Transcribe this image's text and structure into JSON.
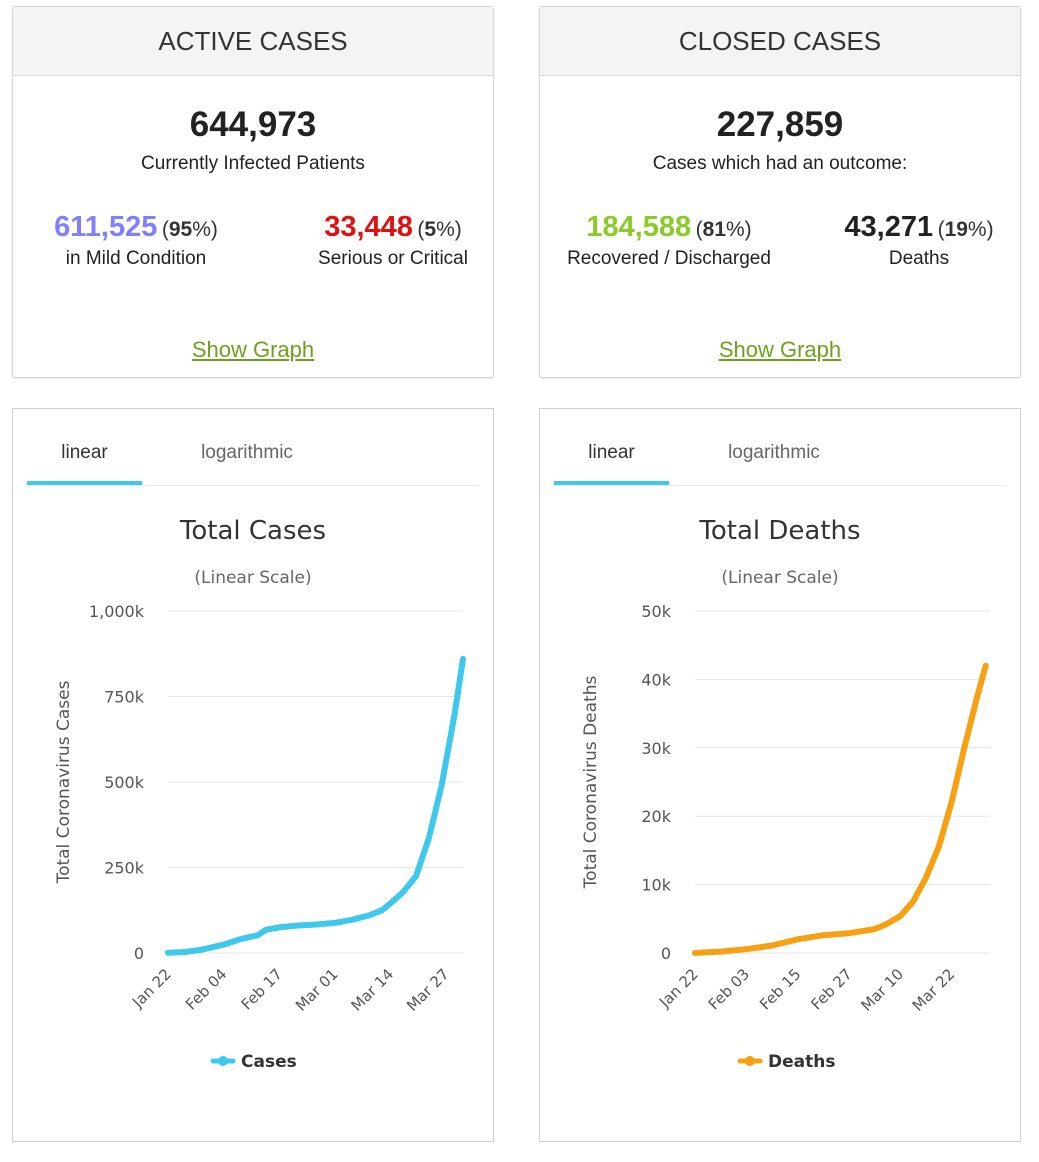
{
  "active_cases": {
    "header": "ACTIVE CASES",
    "total": "644,973",
    "total_label": "Currently Infected Patients",
    "mild": {
      "value": "611,525",
      "pct_open": "(",
      "pct": "95",
      "pct_close": "%)",
      "label": "in Mild Condition",
      "color": "#8080ff"
    },
    "serious": {
      "value": "33,448",
      "pct_open": "(",
      "pct": "5",
      "pct_close": "%)",
      "label": "Serious or Critical",
      "color": "#e01010"
    },
    "show_graph": "Show Graph"
  },
  "closed_cases": {
    "header": "CLOSED CASES",
    "total": "227,859",
    "total_label": "Cases which had an outcome:",
    "recovered": {
      "value": "184,588",
      "pct_open": "(",
      "pct": "81",
      "pct_close": "%)",
      "label": "Recovered / Discharged",
      "color": "#8acb28"
    },
    "deaths": {
      "value": "43,271",
      "pct_open": "(",
      "pct": "19",
      "pct_close": "%)",
      "label": "Deaths",
      "color": "#222222"
    },
    "show_graph": "Show Graph"
  },
  "cases_panel": {
    "tabs": [
      "linear",
      "logarithmic"
    ],
    "active_tab": "linear"
  },
  "deaths_panel": {
    "tabs": [
      "linear",
      "logarithmic"
    ],
    "active_tab": "linear"
  },
  "chart_data": [
    {
      "type": "line",
      "title": "Total Cases",
      "subtitle": "(Linear Scale)",
      "ylabel": "Total Coronavirus Cases",
      "xlabel": "",
      "ylim": [
        0,
        1000000
      ],
      "ytick_labels": [
        "0",
        "250k",
        "500k",
        "750k",
        "1,000k"
      ],
      "ytick_values": [
        0,
        250000,
        500000,
        750000,
        1000000
      ],
      "xtick_labels": [
        "Jan 22",
        "Feb 04",
        "Feb 17",
        "Mar 01",
        "Mar 14",
        "Mar 27"
      ],
      "xtick_index": [
        0,
        13,
        26,
        39,
        52,
        65
      ],
      "x_count": 70,
      "grid": true,
      "legend_position": "bottom",
      "series": [
        {
          "name": "Cases",
          "color": "#3ec9ec",
          "points": [
            [
              0,
              580
            ],
            [
              4,
              2800
            ],
            [
              8,
              9800
            ],
            [
              13,
              24500
            ],
            [
              17,
              40500
            ],
            [
              21,
              52000
            ],
            [
              23,
              68000
            ],
            [
              26,
              75000
            ],
            [
              30,
              80000
            ],
            [
              35,
              83500
            ],
            [
              39,
              88000
            ],
            [
              43,
              97000
            ],
            [
              47,
              110000
            ],
            [
              50,
              125000
            ],
            [
              52,
              145000
            ],
            [
              55,
              178000
            ],
            [
              58,
              225000
            ],
            [
              61,
              335000
            ],
            [
              64,
              490000
            ],
            [
              67,
              695000
            ],
            [
              69,
              860000
            ]
          ]
        }
      ]
    },
    {
      "type": "line",
      "title": "Total Deaths",
      "subtitle": "(Linear Scale)",
      "ylabel": "Total Coronavirus Deaths",
      "xlabel": "",
      "ylim": [
        0,
        50000
      ],
      "ytick_labels": [
        "0",
        "10k",
        "20k",
        "30k",
        "40k",
        "50k"
      ],
      "ytick_values": [
        0,
        10000,
        20000,
        30000,
        40000,
        50000
      ],
      "xtick_labels": [
        "Jan 22",
        "Feb 03",
        "Feb 15",
        "Feb 27",
        "Mar 10",
        "Mar 22"
      ],
      "xtick_index": [
        0,
        12,
        24,
        36,
        48,
        60
      ],
      "x_count": 70,
      "grid": true,
      "legend_position": "bottom",
      "series": [
        {
          "name": "Deaths",
          "color": "#f7a012",
          "points": [
            [
              0,
              17
            ],
            [
              6,
              210
            ],
            [
              12,
              560
            ],
            [
              18,
              1100
            ],
            [
              24,
              2000
            ],
            [
              30,
              2600
            ],
            [
              36,
              2900
            ],
            [
              42,
              3500
            ],
            [
              45,
              4300
            ],
            [
              48,
              5400
            ],
            [
              51,
              7500
            ],
            [
              54,
              11000
            ],
            [
              57,
              15500
            ],
            [
              60,
              22000
            ],
            [
              63,
              30000
            ],
            [
              66,
              37500
            ],
            [
              68,
              42000
            ]
          ]
        }
      ]
    }
  ]
}
